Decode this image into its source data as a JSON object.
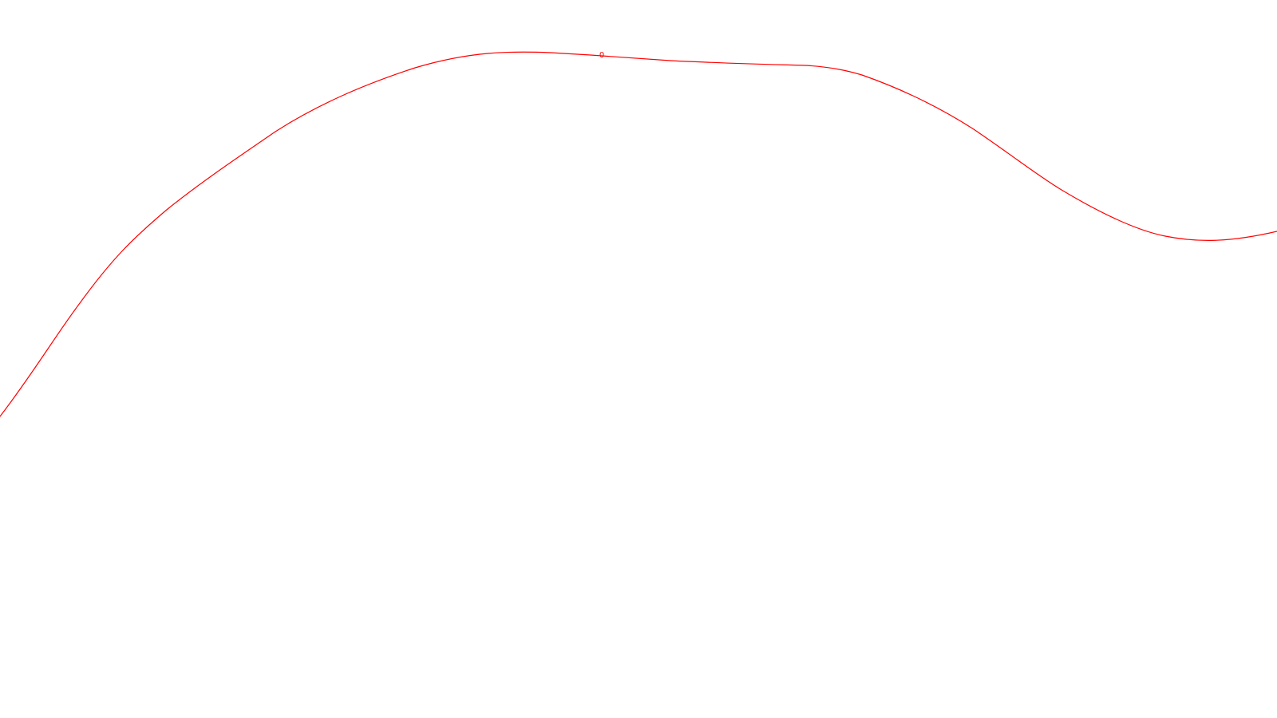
{
  "curve": {
    "label": "0",
    "color": "#ff0000",
    "background": "#ffffff"
  }
}
